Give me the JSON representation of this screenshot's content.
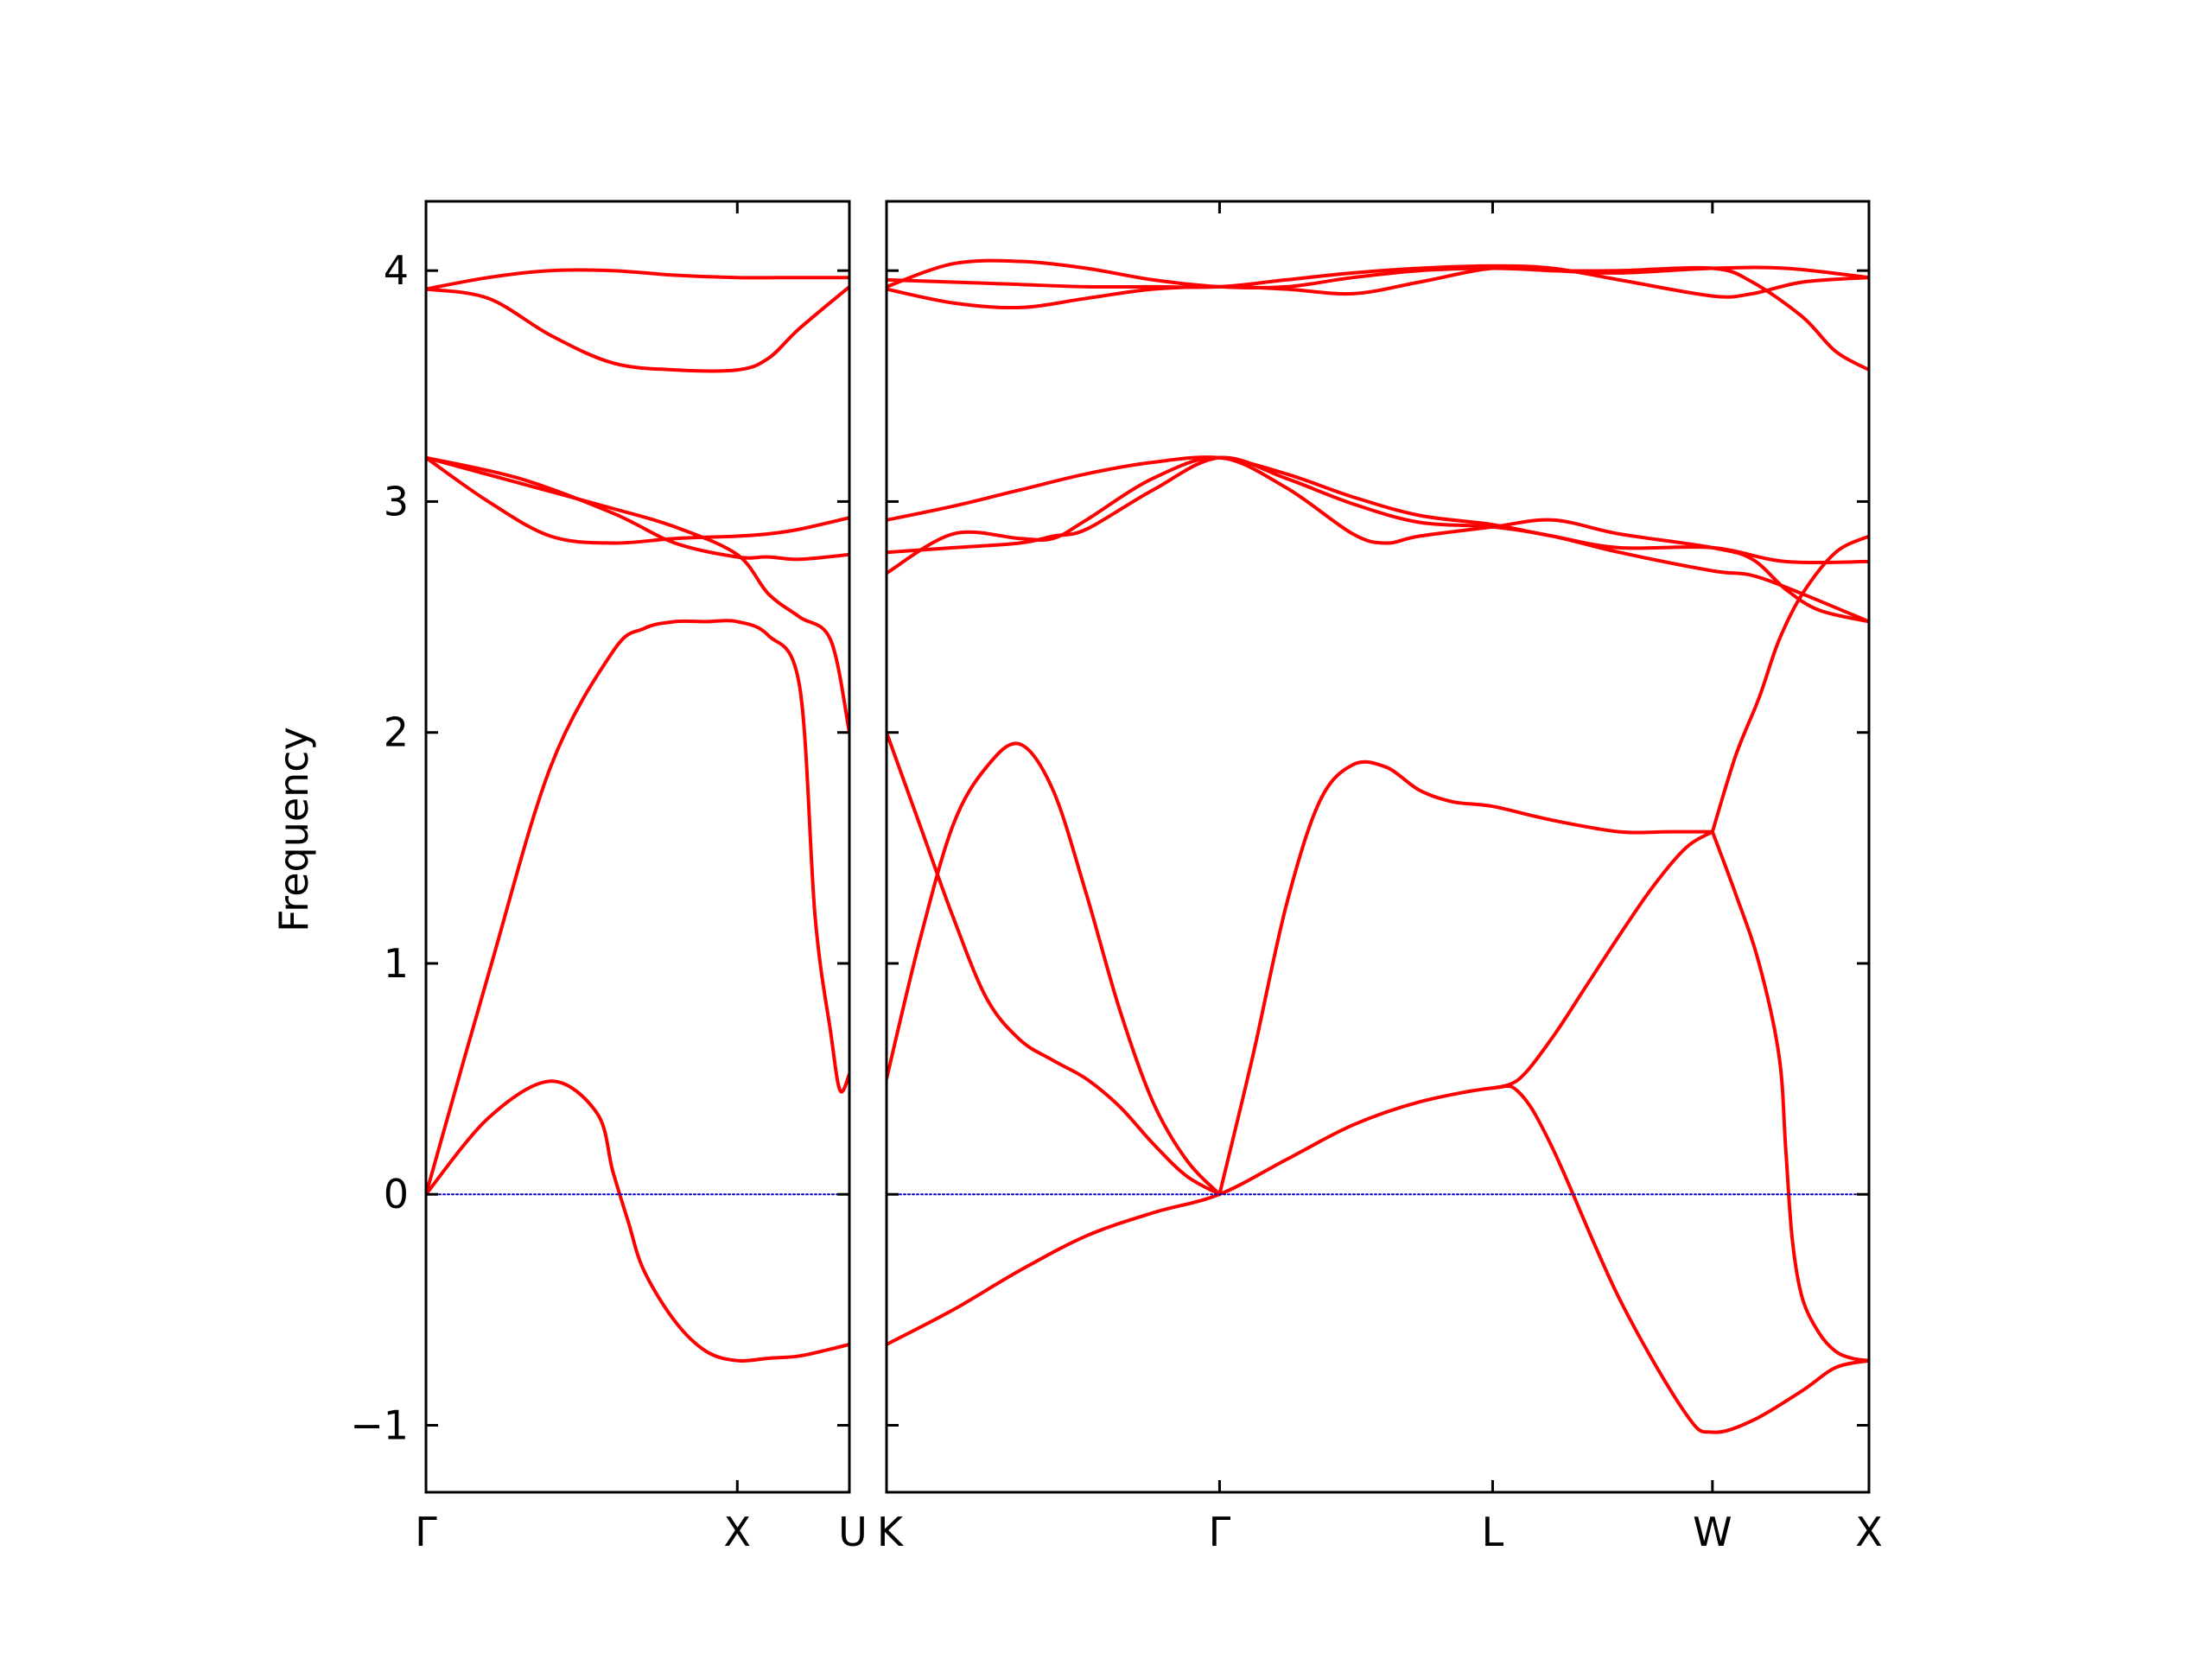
{
  "chart_data": {
    "type": "line",
    "title": "",
    "ylabel": "Frequency",
    "xlabel": "",
    "ylim": [
      -1.29,
      4.3
    ],
    "yticks": [
      -1,
      0,
      1,
      2,
      3,
      4
    ],
    "ytick_labels": [
      "−1",
      "0",
      "1",
      "2",
      "3",
      "4"
    ],
    "grid": false,
    "legend": "none",
    "line_color": "#ff0000",
    "zero_line_color": "#0000cc",
    "panels": [
      {
        "xlim": [
          0,
          1.36
        ],
        "xticks": [
          {
            "x": 0,
            "label": "Γ"
          },
          {
            "x": 1.0,
            "label": "X"
          },
          {
            "x": 1.36,
            "label": "U"
          }
        ],
        "series": [
          {
            "x": [
              0,
              0.2,
              0.4,
              0.55,
              0.6,
              0.65,
              0.7,
              0.8,
              0.9,
              1.0,
              1.1,
              1.2,
              1.3,
              1.36
            ],
            "y": [
              0,
              0.33,
              0.49,
              0.35,
              0.1,
              -0.12,
              -0.33,
              -0.55,
              -0.68,
              -0.72,
              -0.71,
              -0.7,
              -0.67,
              -0.65
            ]
          },
          {
            "x": [
              0,
              0.2,
              0.4,
              0.6,
              0.7,
              0.8,
              0.9,
              1.0,
              1.1,
              1.2,
              1.25,
              1.3,
              1.33,
              1.36
            ],
            "y": [
              0,
              0.95,
              1.85,
              2.35,
              2.45,
              2.48,
              2.48,
              2.48,
              2.42,
              2.2,
              1.2,
              0.7,
              0.45,
              0.52
            ]
          },
          {
            "x": [
              0,
              0.3,
              0.6,
              0.8,
              1.0,
              1.1,
              1.2,
              1.36
            ],
            "y": [
              3.19,
              3.1,
              2.95,
              2.82,
              2.76,
              2.76,
              2.75,
              2.77
            ]
          },
          {
            "x": [
              0,
              0.2,
              0.4,
              0.6,
              0.8,
              1.0,
              1.1,
              1.2,
              1.36
            ],
            "y": [
              3.19,
              3.0,
              2.85,
              2.82,
              2.84,
              2.85,
              2.86,
              2.88,
              2.93
            ]
          },
          {
            "x": [
              0,
              0.3,
              0.6,
              0.8,
              1.0,
              1.1,
              1.2,
              1.3,
              1.36
            ],
            "y": [
              3.19,
              3.08,
              2.97,
              2.89,
              2.77,
              2.6,
              2.5,
              2.4,
              2.0
            ]
          },
          {
            "x": [
              0,
              0.2,
              0.4,
              0.6,
              0.8,
              1.0,
              1.1,
              1.2,
              1.36
            ],
            "y": [
              3.92,
              3.88,
              3.72,
              3.6,
              3.57,
              3.57,
              3.62,
              3.75,
              3.93
            ]
          },
          {
            "x": [
              0,
              0.2,
              0.4,
              0.6,
              0.8,
              1.0,
              1.2,
              1.36
            ],
            "y": [
              3.92,
              3.97,
              4.0,
              4.0,
              3.98,
              3.97,
              3.97,
              3.97
            ]
          },
          {
            "x": [
              0,
              1.36
            ],
            "y": [
              0,
              0
            ]
          }
        ]
      },
      {
        "xlim": [
          0,
          2.95
        ],
        "xticks": [
          {
            "x": 0,
            "label": "K"
          },
          {
            "x": 1.0,
            "label": "Γ"
          },
          {
            "x": 1.82,
            "label": "L"
          },
          {
            "x": 2.48,
            "label": "W"
          },
          {
            "x": 2.95,
            "label": "X"
          }
        ],
        "series": [
          {
            "x": [
              0,
              0.2,
              0.4,
              0.6,
              0.8,
              1.0,
              1.2,
              1.4,
              1.6,
              1.82,
              1.9,
              2.0,
              2.2,
              2.4,
              2.48,
              2.6,
              2.75,
              2.85,
              2.95
            ],
            "y": [
              -0.65,
              -0.5,
              -0.33,
              -0.18,
              -0.08,
              0,
              0.15,
              0.3,
              0.4,
              0.46,
              0.44,
              0.2,
              -0.45,
              -0.95,
              -1.03,
              -0.98,
              -0.85,
              -0.75,
              -0.72
            ]
          },
          {
            "x": [
              0,
              0.1,
              0.2,
              0.3,
              0.4,
              0.5,
              0.6,
              0.7,
              0.8,
              0.9,
              1.0
            ],
            "y": [
              0.5,
              1.1,
              1.6,
              1.85,
              1.95,
              1.75,
              1.3,
              0.8,
              0.4,
              0.15,
              0
            ]
          },
          {
            "x": [
              0,
              0.1,
              0.2,
              0.3,
              0.4,
              0.5,
              0.6,
              0.7,
              0.8,
              0.9,
              1.0
            ],
            "y": [
              2.0,
              1.6,
              1.2,
              0.85,
              0.67,
              0.58,
              0.5,
              0.38,
              0.22,
              0.08,
              0
            ]
          },
          {
            "x": [
              1.0,
              1.1,
              1.2,
              1.3,
              1.4,
              1.5,
              1.6,
              1.7,
              1.82,
              2.0,
              2.2,
              2.35,
              2.48
            ],
            "y": [
              0,
              0.6,
              1.25,
              1.7,
              1.86,
              1.85,
              1.75,
              1.7,
              1.68,
              1.62,
              1.57,
              1.57,
              1.57
            ]
          },
          {
            "x": [
              1.82,
              1.9,
              2.0,
              2.1,
              2.2,
              2.3,
              2.4,
              2.48
            ],
            "y": [
              0.46,
              0.5,
              0.68,
              0.9,
              1.12,
              1.33,
              1.5,
              1.57
            ]
          },
          {
            "x": [
              2.48,
              2.55,
              2.62,
              2.68,
              2.75,
              2.85,
              2.95
            ],
            "y": [
              1.57,
              1.9,
              2.15,
              2.4,
              2.6,
              2.78,
              2.85
            ]
          },
          {
            "x": [
              2.48,
              2.55,
              2.62,
              2.68,
              2.7,
              2.72,
              2.75,
              2.8,
              2.85,
              2.9,
              2.95
            ],
            "y": [
              1.57,
              1.3,
              1.0,
              0.6,
              0.2,
              -0.2,
              -0.45,
              -0.6,
              -0.68,
              -0.71,
              -0.72
            ]
          },
          {
            "x": [
              0,
              0.2,
              0.4,
              0.6,
              0.8,
              1.0,
              1.2,
              1.4,
              1.6,
              1.82,
              2.0,
              2.2,
              2.48,
              2.7,
              2.95
            ],
            "y": [
              2.92,
              2.98,
              3.05,
              3.12,
              3.17,
              3.19,
              3.12,
              3.02,
              2.94,
              2.9,
              2.85,
              2.8,
              2.8,
              2.74,
              2.74
            ]
          },
          {
            "x": [
              0,
              0.2,
              0.4,
              0.5,
              0.6,
              0.8,
              1.0,
              1.2,
              1.4,
              1.5,
              1.6,
              1.82,
              2.0,
              2.2,
              2.48,
              2.6,
              2.7,
              2.8,
              2.95
            ],
            "y": [
              2.69,
              2.86,
              2.84,
              2.84,
              2.92,
              3.1,
              3.19,
              3.06,
              2.86,
              2.82,
              2.85,
              2.89,
              2.92,
              2.86,
              2.8,
              2.75,
              2.62,
              2.53,
              2.48
            ]
          },
          {
            "x": [
              0,
              0.2,
              0.4,
              0.5,
              0.6,
              0.8,
              1.0,
              1.2,
              1.4,
              1.6,
              1.82,
              2.0,
              2.2,
              2.48,
              2.6,
              2.75,
              2.95
            ],
            "y": [
              2.78,
              2.8,
              2.82,
              2.85,
              2.88,
              3.05,
              3.19,
              3.1,
              2.99,
              2.91,
              2.89,
              2.85,
              2.78,
              2.7,
              2.68,
              2.6,
              2.48
            ]
          },
          {
            "x": [
              0,
              0.2,
              0.4,
              0.6,
              0.8,
              1.0,
              1.2,
              1.4,
              1.6,
              1.82,
              2.0,
              2.2,
              2.48,
              2.7,
              2.95
            ],
            "y": [
              3.93,
              4.03,
              4.04,
              4.01,
              3.96,
              3.93,
              3.93,
              3.97,
              4.0,
              4.01,
              4.0,
              3.99,
              4.01,
              4.01,
              3.97
            ]
          },
          {
            "x": [
              0,
              0.2,
              0.4,
              0.6,
              0.8,
              1.0,
              1.2,
              1.4,
              1.6,
              1.82,
              2.0,
              2.2,
              2.48,
              2.6,
              2.75,
              2.85,
              2.95
            ],
            "y": [
              3.92,
              3.86,
              3.84,
              3.88,
              3.92,
              3.93,
              3.92,
              3.9,
              3.95,
              4.01,
              4.0,
              4.0,
              4.01,
              3.95,
              3.8,
              3.65,
              3.57
            ]
          },
          {
            "x": [
              0,
              0.2,
              0.4,
              0.6,
              0.8,
              1.0,
              1.2,
              1.4,
              1.6,
              1.82,
              2.0,
              2.2,
              2.48,
              2.6,
              2.75,
              2.95
            ],
            "y": [
              3.96,
              3.95,
              3.94,
              3.93,
              3.93,
              3.93,
              3.96,
              3.99,
              4.01,
              4.02,
              4.01,
              3.96,
              3.89,
              3.9,
              3.95,
              3.97
            ]
          },
          {
            "x": [
              0,
              2.95
            ],
            "y": [
              0,
              0
            ]
          }
        ]
      }
    ]
  }
}
